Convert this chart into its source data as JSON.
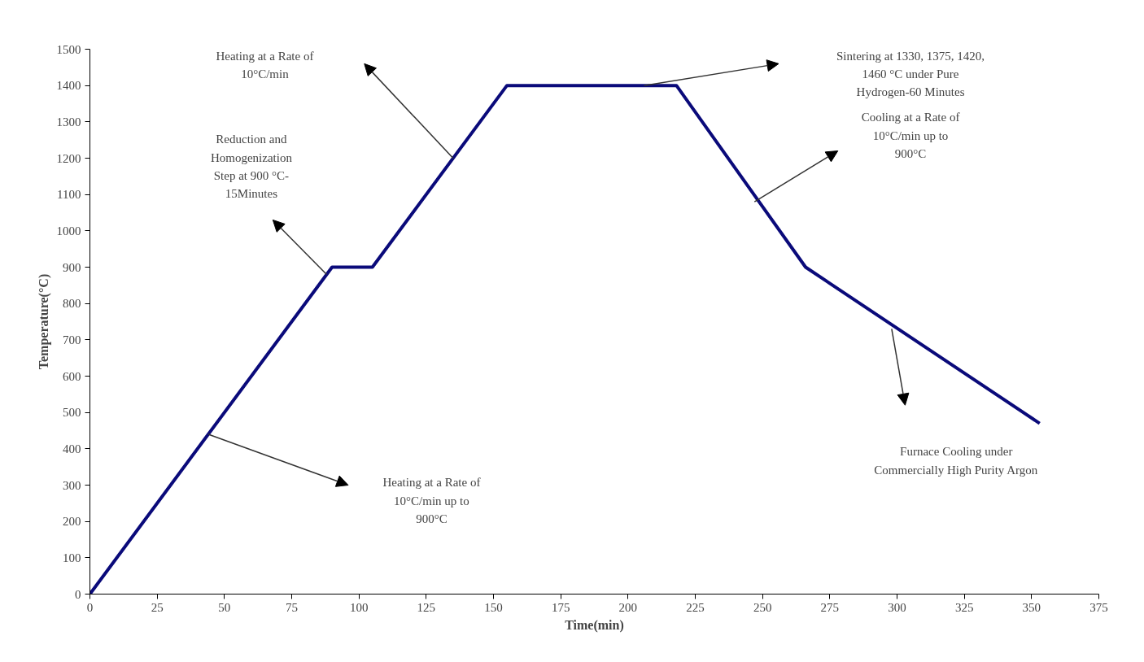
{
  "chart_data": {
    "type": "line",
    "xlabel": "Time(min)",
    "ylabel": "Temperature(°C)",
    "x": [
      0,
      90,
      105,
      155,
      218,
      266,
      353
    ],
    "series": [
      {
        "color": "#0a0a7a",
        "values": [
          0,
          900,
          900,
          1400,
          1400,
          900,
          470
        ]
      }
    ],
    "xlim": [
      0,
      375
    ],
    "ylim": [
      0,
      1500
    ],
    "xticks": [
      0,
      25,
      50,
      75,
      100,
      125,
      150,
      175,
      200,
      225,
      250,
      275,
      300,
      325,
      350,
      375
    ],
    "yticks": [
      0,
      100,
      200,
      300,
      400,
      500,
      600,
      700,
      800,
      900,
      1000,
      1100,
      1200,
      1300,
      1400,
      1500
    ],
    "grid": false,
    "marker": "none",
    "line_style": "solid",
    "annotations": [
      "Heating at a Rate of\n10°C/min up to\n900°C",
      "Reduction and\nHomogenization\nStep at 900 °C-\n15Minutes",
      "Heating at a Rate of\n10°C/min",
      "Sintering at 1330, 1375, 1420,\n1460 °C under Pure\nHydrogen-60 Minutes",
      "Cooling at a Rate of\n10°C/min up to\n900°C",
      "Furnace Cooling under\nCommercially High Purity Argon"
    ]
  }
}
